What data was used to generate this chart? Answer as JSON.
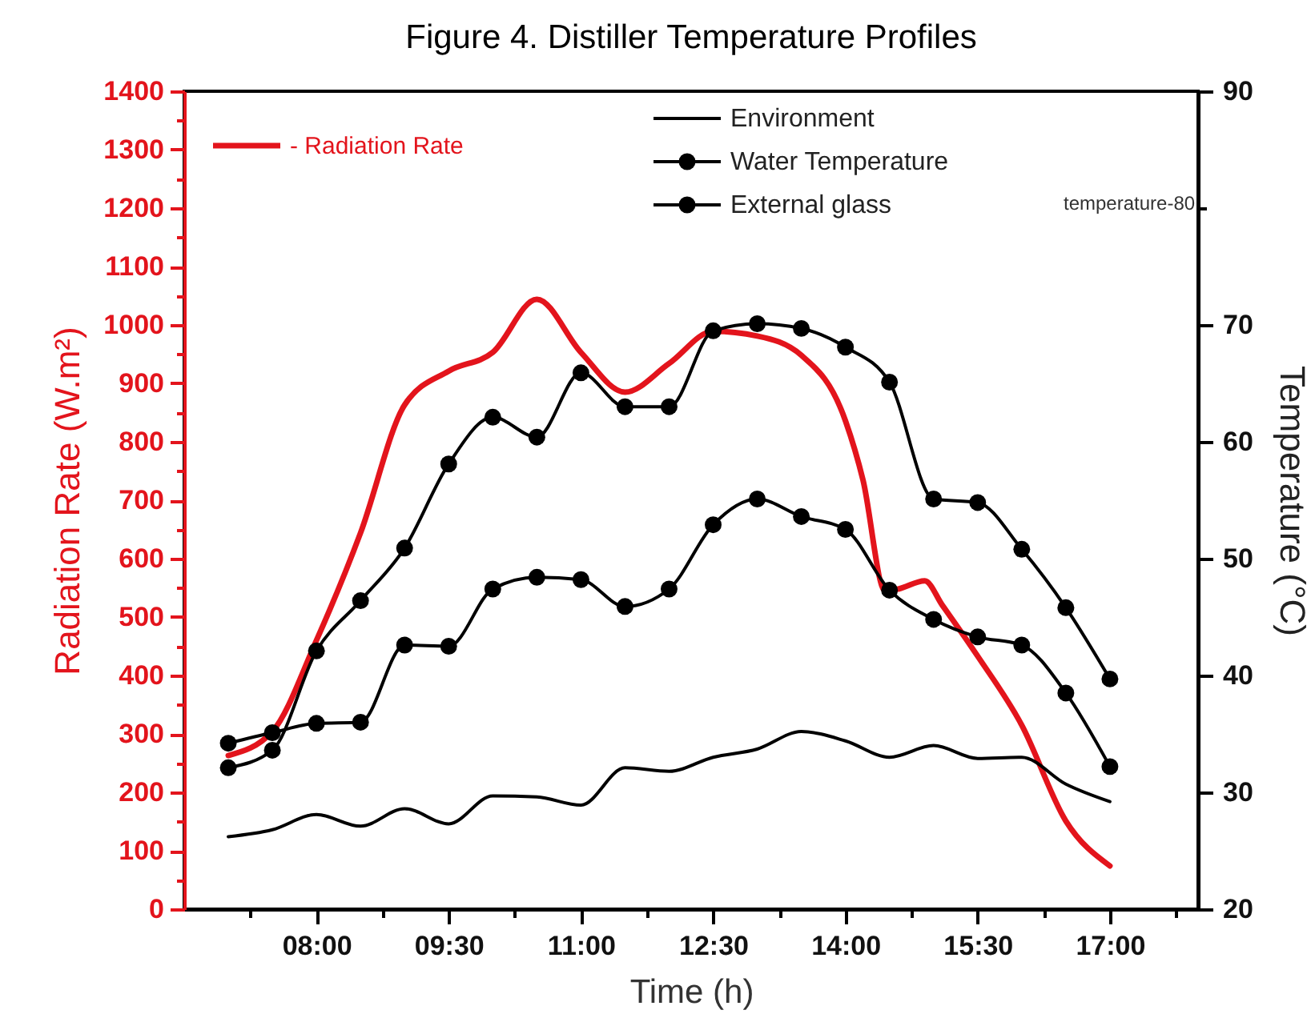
{
  "chart_data": {
    "type": "line",
    "title": "Figure 4. Distiller Temperature Profiles",
    "xlabel": "Time (h)",
    "ylabel": "Radiation Rate (W.m²)",
    "y2label": "Temperature (°C)",
    "xlim": [
      6.5,
      18
    ],
    "xticks": [
      {
        "value": 7.25,
        "label": null
      },
      {
        "value": 8,
        "label": "08:00"
      },
      {
        "value": 8.75,
        "label": null
      },
      {
        "value": 9.5,
        "label": "09:30"
      },
      {
        "value": 10.25,
        "label": null
      },
      {
        "value": 11,
        "label": "11:00"
      },
      {
        "value": 11.75,
        "label": null
      },
      {
        "value": 12.5,
        "label": "12:30"
      },
      {
        "value": 13.25,
        "label": null
      },
      {
        "value": 14,
        "label": "14:00"
      },
      {
        "value": 14.75,
        "label": null
      },
      {
        "value": 15.5,
        "label": "15:30"
      },
      {
        "value": 16.25,
        "label": null
      },
      {
        "value": 17,
        "label": "17:00"
      },
      {
        "value": 17.75,
        "label": null
      }
    ],
    "ylim": [
      0,
      1400
    ],
    "yticks": [
      0,
      {
        "value": 50,
        "label": null
      },
      100,
      {
        "value": 150,
        "label": null
      },
      200,
      {
        "value": 250,
        "label": null
      },
      300,
      {
        "value": 350,
        "label": null
      },
      400,
      {
        "value": 450,
        "label": null
      },
      500,
      {
        "value": 550,
        "label": null
      },
      600,
      {
        "value": 650,
        "label": null
      },
      700,
      {
        "value": 750,
        "label": null
      },
      800,
      {
        "value": 850,
        "label": null
      },
      900,
      {
        "value": 950,
        "label": null
      },
      1000,
      {
        "value": 1050,
        "label": null
      },
      1100,
      {
        "value": 1150,
        "label": null
      },
      1200,
      {
        "value": 1250,
        "label": null
      },
      1300,
      {
        "value": 1350,
        "label": null
      },
      1400
    ],
    "y2lim": [
      20,
      90
    ],
    "y2ticks": [
      20,
      {
        "value": 25,
        "label": null
      },
      30,
      {
        "value": 35,
        "label": null
      },
      40,
      {
        "value": 45,
        "label": null
      },
      50,
      {
        "value": 55,
        "label": null
      },
      60,
      {
        "value": 65,
        "label": null
      },
      70,
      {
        "value": 75,
        "label": null
      },
      {
        "value": 80,
        "label": null
      },
      {
        "value": 85,
        "label": null
      },
      90
    ],
    "legend": "top",
    "annotations": [
      "temperature-80"
    ],
    "series": [
      {
        "name": "- Radiation Rate",
        "color": "#e3141c",
        "marker": "none",
        "x": [
          7,
          7.5,
          8,
          8.5,
          9,
          9.5,
          10,
          10.5,
          11,
          11.5,
          12,
          12.5,
          13,
          13.5,
          14,
          14.2,
          14.45,
          14.6,
          14.9,
          15.1,
          15.5,
          16,
          16.5,
          17
        ],
        "values": [
          263,
          304,
          460,
          644,
          863,
          921,
          953,
          1044,
          953,
          885,
          934,
          989,
          981,
          948,
          836,
          734,
          545,
          548,
          562,
          520,
          433,
          315,
          151,
          74
        ]
      },
      {
        "name": "Environment",
        "color": "#000000",
        "axis": "y2",
        "marker": "none",
        "x": [
          7,
          7.5,
          8,
          8.5,
          9,
          9.5,
          10,
          10.5,
          11,
          11.5,
          12,
          12.5,
          13,
          13.5,
          14,
          14.5,
          15,
          15.5,
          16,
          16.5,
          17
        ],
        "values": [
          26.2,
          26.8,
          28.1,
          27.1,
          28.6,
          27.3,
          29.7,
          29.6,
          28.9,
          32.1,
          31.8,
          33.0,
          33.7,
          35.2,
          34.4,
          33.0,
          34.0,
          32.9,
          33.0,
          30.7,
          29.2
        ]
      },
      {
        "name": "Water Temperature",
        "color": "#000000",
        "axis": "y2",
        "marker": "circle",
        "x": [
          7,
          7.5,
          8,
          8.5,
          9,
          9.5,
          10,
          10.5,
          11,
          11.5,
          12,
          12.5,
          13,
          13.5,
          14,
          14.5,
          15,
          15.5,
          16,
          16.5,
          17
        ],
        "values": [
          32.1,
          33.6,
          42.1,
          46.4,
          50.9,
          58.1,
          62.1,
          60.4,
          65.9,
          63.0,
          63.0,
          69.5,
          70.1,
          69.7,
          68.1,
          65.1,
          55.1,
          54.8,
          50.8,
          45.8,
          39.7
        ]
      },
      {
        "name": "External glass",
        "color": "#000000",
        "axis": "y2",
        "marker": "circle",
        "x": [
          7,
          7.5,
          8,
          8.5,
          9,
          9.5,
          10,
          10.5,
          11,
          11.5,
          12,
          12.5,
          13,
          13.5,
          14,
          14.5,
          15,
          15.5,
          16,
          16.5,
          17
        ],
        "values": [
          34.2,
          35.1,
          35.9,
          36.0,
          42.6,
          42.5,
          47.4,
          48.4,
          48.2,
          45.9,
          47.4,
          52.9,
          55.1,
          53.6,
          52.5,
          47.3,
          44.8,
          43.3,
          42.6,
          38.5,
          32.2
        ]
      }
    ]
  }
}
